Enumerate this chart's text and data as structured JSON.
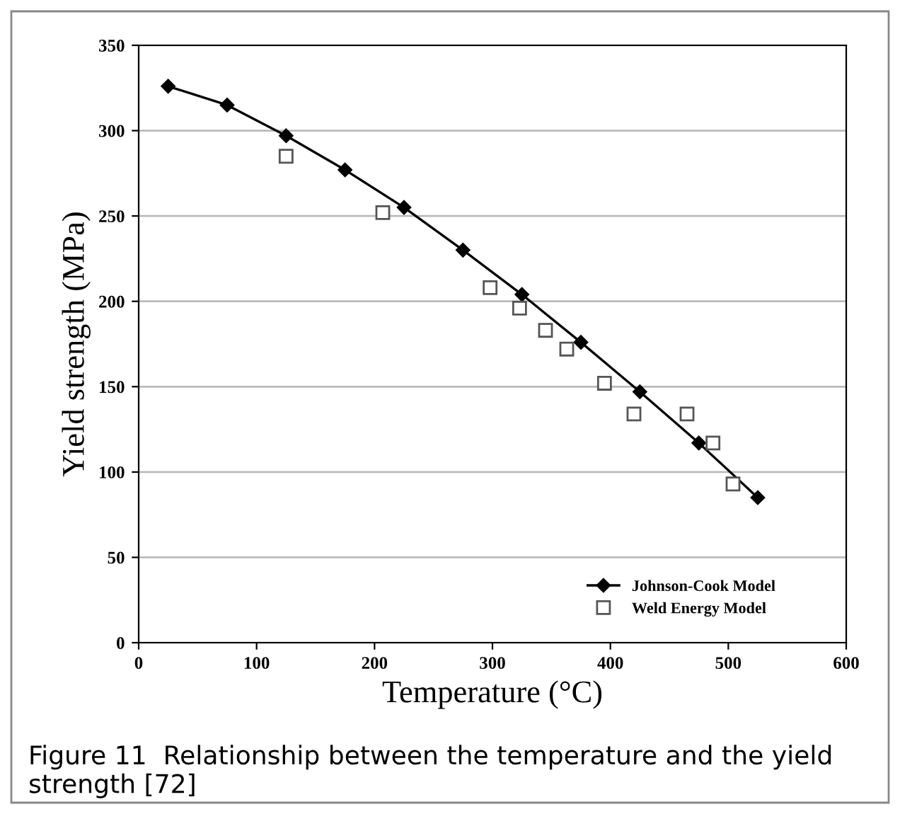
{
  "chart_data": {
    "type": "line",
    "xlabel": "Temperature (°C)",
    "ylabel": "Yield strength (MPa)",
    "xlim": [
      0,
      600
    ],
    "xticks": [
      0,
      100,
      200,
      300,
      400,
      500,
      600
    ],
    "ylim": [
      0,
      350
    ],
    "yticks": [
      0,
      50,
      100,
      150,
      200,
      250,
      300,
      350
    ],
    "grid": "y",
    "legend": "bottom right",
    "series": [
      {
        "name": "Johnson-Cook Model",
        "marker": "diamond",
        "color": "#000000",
        "x": [
          25,
          75,
          125,
          175,
          225,
          275,
          325,
          375,
          425,
          475,
          525
        ],
        "values": [
          326,
          315,
          297,
          277,
          255,
          230,
          204,
          176,
          147,
          117,
          85
        ]
      },
      {
        "name": "Weld Energy Model",
        "type": "scatter",
        "marker": "square",
        "color": "#555555",
        "x": [
          125,
          207,
          298,
          323,
          345,
          363,
          395,
          420,
          465,
          487,
          504
        ],
        "values": [
          285,
          252,
          208,
          196,
          183,
          172,
          152,
          134,
          134,
          117,
          93
        ]
      }
    ],
    "annotations": [
      "Figure 11  Relationship between the temperature and the yield strength [72]"
    ]
  }
}
